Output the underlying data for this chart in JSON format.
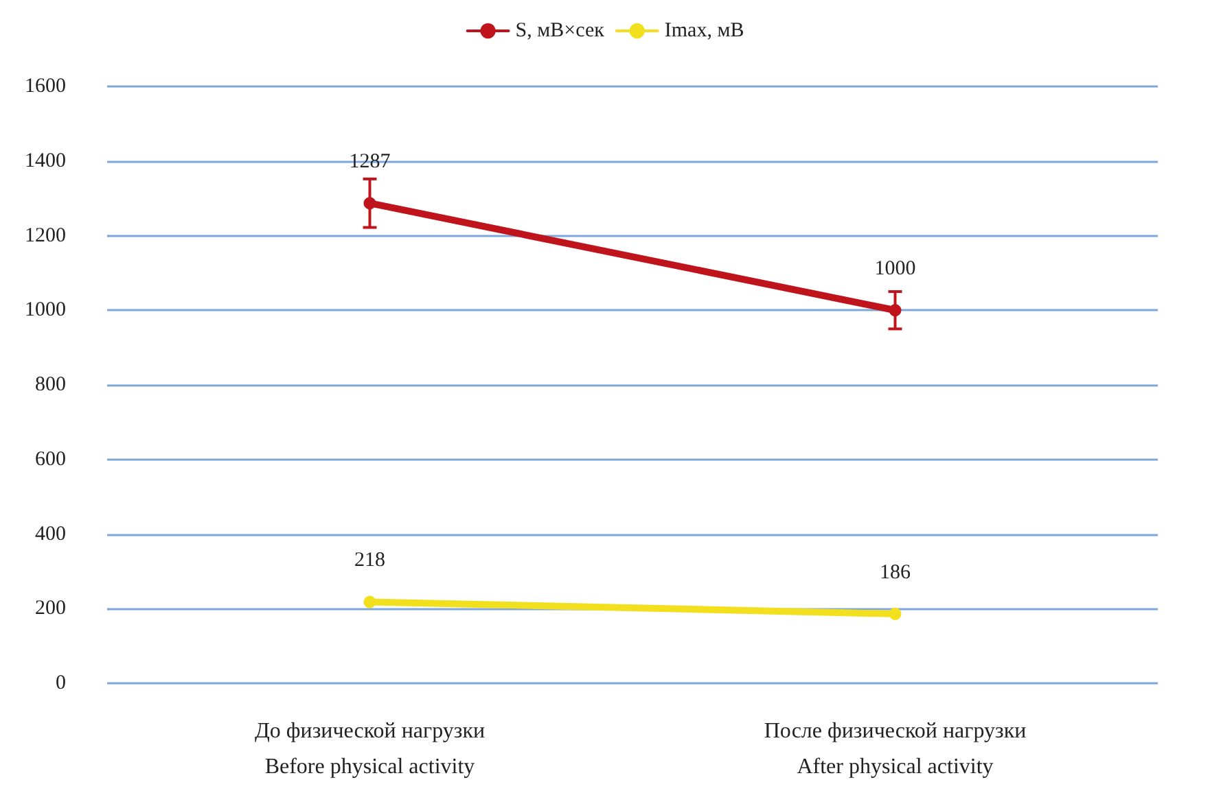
{
  "chart_data": {
    "type": "line",
    "categories": [
      "До физической нагрузки\nBefore physical activity",
      "После физической нагрузки\nAfter physical activity"
    ],
    "series": [
      {
        "name": "S, мВ×сек",
        "color": "#c0141c",
        "values": [
          1287,
          1000
        ],
        "errors": [
          65,
          50
        ]
      },
      {
        "name": "Imax, мВ",
        "color": "#f2e01e",
        "values": [
          218,
          186
        ]
      }
    ],
    "ylim": [
      0,
      1600
    ],
    "yticks": [
      0,
      200,
      400,
      600,
      800,
      1000,
      1200,
      1400,
      1600
    ],
    "grid": "y",
    "legend": "top",
    "marker": "circle",
    "line_style": "solid",
    "data_labels": true
  }
}
